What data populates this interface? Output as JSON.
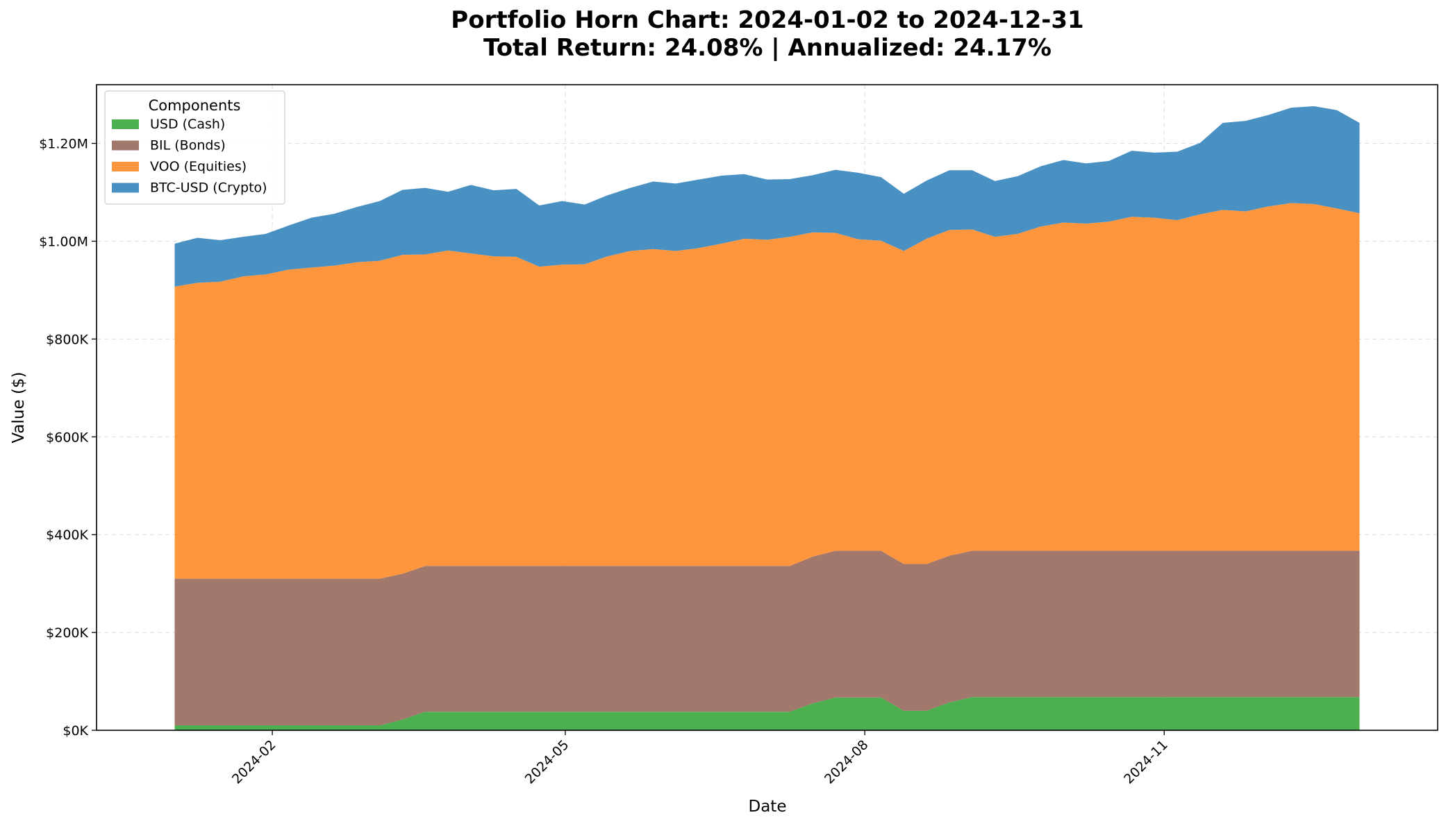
{
  "chart_data": {
    "type": "area",
    "title": "Portfolio Horn Chart: 2024-01-02 to 2024-12-31",
    "subtitle": "Total Return: 24.08% | Annualized: 24.17%",
    "xlabel": "Date",
    "ylabel": "Value ($)",
    "stacked": true,
    "grid": true,
    "legend": {
      "title": "Components",
      "placement": "top-left"
    },
    "xlim": [
      "2023-12-09",
      "2025-01-24"
    ],
    "ylim": [
      0,
      1320000
    ],
    "x_ticks": [
      {
        "date": "2024-02-01",
        "label": "2024-02"
      },
      {
        "date": "2024-05-01",
        "label": "2024-05"
      },
      {
        "date": "2024-08-01",
        "label": "2024-08"
      },
      {
        "date": "2024-11-01",
        "label": "2024-11"
      }
    ],
    "y_ticks": [
      {
        "value": 0,
        "label": "$0K"
      },
      {
        "value": 200000,
        "label": "$200K"
      },
      {
        "value": 400000,
        "label": "$400K"
      },
      {
        "value": 600000,
        "label": "$600K"
      },
      {
        "value": 800000,
        "label": "$800K"
      },
      {
        "value": 1000000,
        "label": "$1.00M"
      },
      {
        "value": 1200000,
        "label": "$1.20M"
      }
    ],
    "x": [
      "2024-01-02",
      "2024-01-09",
      "2024-01-16",
      "2024-01-23",
      "2024-01-30",
      "2024-02-06",
      "2024-02-13",
      "2024-02-20",
      "2024-02-27",
      "2024-03-05",
      "2024-03-12",
      "2024-03-19",
      "2024-03-26",
      "2024-04-02",
      "2024-04-09",
      "2024-04-16",
      "2024-04-23",
      "2024-04-30",
      "2024-05-07",
      "2024-05-14",
      "2024-05-21",
      "2024-05-28",
      "2024-06-04",
      "2024-06-11",
      "2024-06-18",
      "2024-06-25",
      "2024-07-02",
      "2024-07-09",
      "2024-07-16",
      "2024-07-23",
      "2024-07-30",
      "2024-08-06",
      "2024-08-13",
      "2024-08-20",
      "2024-08-27",
      "2024-09-03",
      "2024-09-10",
      "2024-09-17",
      "2024-09-24",
      "2024-10-01",
      "2024-10-08",
      "2024-10-15",
      "2024-10-22",
      "2024-10-29",
      "2024-11-05",
      "2024-11-12",
      "2024-11-19",
      "2024-11-26",
      "2024-12-03",
      "2024-12-10",
      "2024-12-17",
      "2024-12-24",
      "2024-12-31"
    ],
    "series": [
      {
        "name": "USD (Cash)",
        "color": "#4caf50",
        "values": [
          10000,
          10000,
          10000,
          10000,
          10000,
          10000,
          10000,
          10000,
          10000,
          10000,
          22000,
          38000,
          38000,
          38000,
          38000,
          38000,
          38000,
          38000,
          38000,
          38000,
          38000,
          38000,
          38000,
          38000,
          38000,
          38000,
          38000,
          38000,
          55000,
          67000,
          67000,
          67000,
          40000,
          40000,
          57000,
          68000,
          68000,
          68000,
          68000,
          68000,
          68000,
          68000,
          68000,
          68000,
          68000,
          68000,
          68000,
          68000,
          68000,
          68000,
          68000,
          68000,
          68000
        ]
      },
      {
        "name": "BIL (Bonds)",
        "color": "#a1786b",
        "values": [
          300000,
          300000,
          300000,
          300000,
          300000,
          300000,
          300000,
          300000,
          300000,
          300000,
          298000,
          298000,
          298000,
          298000,
          298000,
          298000,
          298000,
          298000,
          298000,
          298000,
          298000,
          298000,
          298000,
          298000,
          298000,
          298000,
          298000,
          298000,
          300000,
          300000,
          300000,
          300000,
          300000,
          300000,
          300000,
          299000,
          299000,
          299000,
          299000,
          299000,
          299000,
          299000,
          299000,
          299000,
          299000,
          299000,
          299000,
          299000,
          299000,
          299000,
          299000,
          299000,
          299000
        ]
      },
      {
        "name": "VOO (Equities)",
        "color": "#ff963d",
        "values": [
          597000,
          605000,
          607000,
          618000,
          622000,
          632000,
          636000,
          640000,
          647000,
          650000,
          652000,
          637000,
          645000,
          639000,
          633000,
          632000,
          612000,
          616000,
          617000,
          633000,
          644000,
          648000,
          644000,
          650000,
          659000,
          669000,
          667000,
          673000,
          663000,
          650000,
          637000,
          634000,
          640000,
          665000,
          666000,
          657000,
          642000,
          648000,
          663000,
          671000,
          669000,
          673000,
          683000,
          681000,
          676000,
          688000,
          697000,
          694000,
          704000,
          711000,
          709000,
          700000,
          690000
        ]
      },
      {
        "name": "BTC-USD (Crypto)",
        "color": "#4a91c3",
        "values": [
          88000,
          92000,
          85000,
          81000,
          83000,
          90000,
          102000,
          106000,
          113000,
          122000,
          133000,
          136000,
          120000,
          140000,
          135000,
          139000,
          125000,
          130000,
          122000,
          125000,
          129000,
          138000,
          138000,
          140000,
          139000,
          132000,
          123000,
          118000,
          117000,
          129000,
          136000,
          130000,
          117000,
          119000,
          122000,
          121000,
          114000,
          118000,
          123000,
          128000,
          123000,
          124000,
          135000,
          133000,
          140000,
          146000,
          178000,
          185000,
          187000,
          195000,
          200000,
          201000,
          185000
        ]
      }
    ]
  }
}
